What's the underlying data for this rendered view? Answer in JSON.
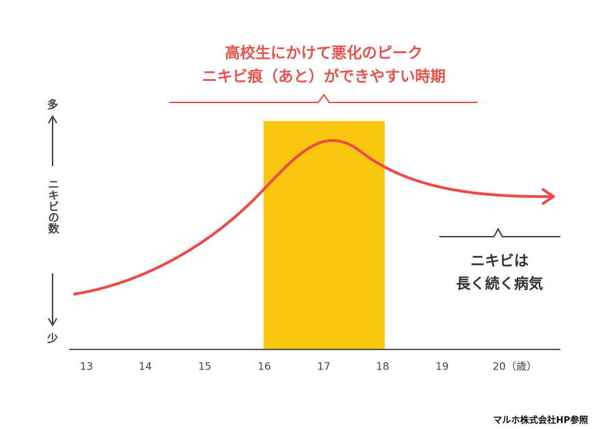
{
  "header": {
    "title_line1": "高校生にかけて悪化のピーク",
    "title_line2": "ニキビ痕（あと）ができやすい時期"
  },
  "y_axis": {
    "top": "多",
    "label": "ニキビの数",
    "bottom": "少"
  },
  "x_axis": {
    "ticks": [
      "13",
      "14",
      "15",
      "16",
      "17",
      "18",
      "19",
      "20（歳）"
    ]
  },
  "annotation": {
    "line1": "ニキビは",
    "line2": "長く続く病気"
  },
  "source": "マルホ株式会社HP参照"
}
